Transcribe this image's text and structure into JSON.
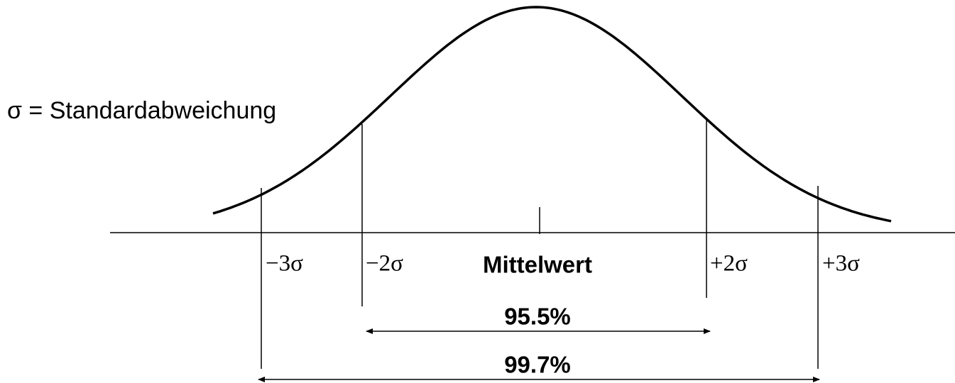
{
  "legend": "σ = Standardabweichung",
  "labels": {
    "minus3": "−3σ",
    "minus2": "−2σ",
    "mean": "Mittelwert",
    "plus2": "+2σ",
    "plus3": "+3σ"
  },
  "ranges": {
    "two_sigma": "95.5%",
    "three_sigma": "99.7%"
  }
}
